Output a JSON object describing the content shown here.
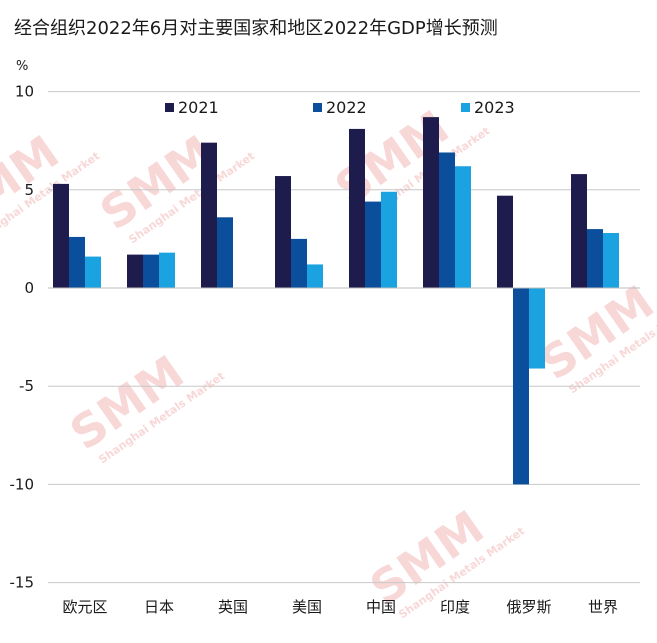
{
  "chart_data": {
    "type": "bar",
    "title": "经合组织2022年6月对主要国家和地区2022年GDP增长预测",
    "ylabel": "%",
    "xlabel": "",
    "categories": [
      "欧元区",
      "日本",
      "英国",
      "美国",
      "中国",
      "印度",
      "俄罗斯",
      "世界"
    ],
    "series": [
      {
        "name": "2021",
        "color": "#1e1b4d",
        "values": [
          5.3,
          1.7,
          7.4,
          5.7,
          8.1,
          8.7,
          4.7,
          5.8
        ]
      },
      {
        "name": "2022",
        "color": "#0b4f9c",
        "values": [
          2.6,
          1.7,
          3.6,
          2.5,
          4.4,
          6.9,
          -10.0,
          3.0
        ]
      },
      {
        "name": "2023",
        "color": "#1aa3e0",
        "values": [
          1.6,
          1.8,
          0.0,
          1.2,
          4.9,
          6.2,
          -4.1,
          2.8
        ]
      }
    ],
    "ylim": [
      -15,
      10
    ],
    "yticks": [
      10,
      5,
      0,
      -5,
      -10,
      -15
    ],
    "grid": true,
    "legend_position": "top"
  },
  "watermark": {
    "brand": "SMM",
    "subtitle": "Shanghai Metals Market",
    "color": "#f3b8b8"
  }
}
